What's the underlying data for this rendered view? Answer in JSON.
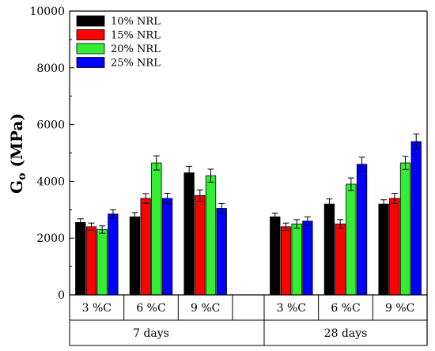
{
  "chart_data": {
    "type": "bar",
    "ylabel_main": "G",
    "ylabel_sub": "o",
    "ylabel_unit": " (MPa)",
    "ylim": [
      0,
      10000
    ],
    "yticks": [
      0,
      2000,
      4000,
      6000,
      8000,
      10000
    ],
    "legend_position": "top-left",
    "groups": [
      {
        "name": "7 days",
        "categories": [
          {
            "label": "3 %C",
            "values": [
              2550,
              2400,
              2300,
              2850
            ],
            "errors": [
              130,
              130,
              130,
              150
            ]
          },
          {
            "label": "6 %C",
            "values": [
              2750,
              3400,
              4650,
              3400
            ],
            "errors": [
              150,
              170,
              250,
              180
            ]
          },
          {
            "label": "9 %C",
            "values": [
              4300,
              3500,
              4200,
              3050
            ],
            "errors": [
              230,
              200,
              230,
              170
            ]
          }
        ]
      },
      {
        "name": "28 days",
        "categories": [
          {
            "label": "3 %C",
            "values": [
              2750,
              2400,
              2500,
              2600
            ],
            "errors": [
              130,
              130,
              150,
              150
            ]
          },
          {
            "label": "6 %C",
            "values": [
              3200,
              2500,
              3900,
              4600
            ],
            "errors": [
              180,
              150,
              220,
              250
            ]
          },
          {
            "label": "9 %C",
            "values": [
              3200,
              3400,
              4650,
              5400
            ],
            "errors": [
              150,
              180,
              230,
              270
            ]
          }
        ]
      }
    ],
    "series": [
      {
        "name": "10% NRL",
        "color": "#000000"
      },
      {
        "name": "15% NRL",
        "color": "#ff0000"
      },
      {
        "name": "20% NRL",
        "color": "#33ee33"
      },
      {
        "name": "25% NRL",
        "color": "#0000ff"
      }
    ]
  }
}
